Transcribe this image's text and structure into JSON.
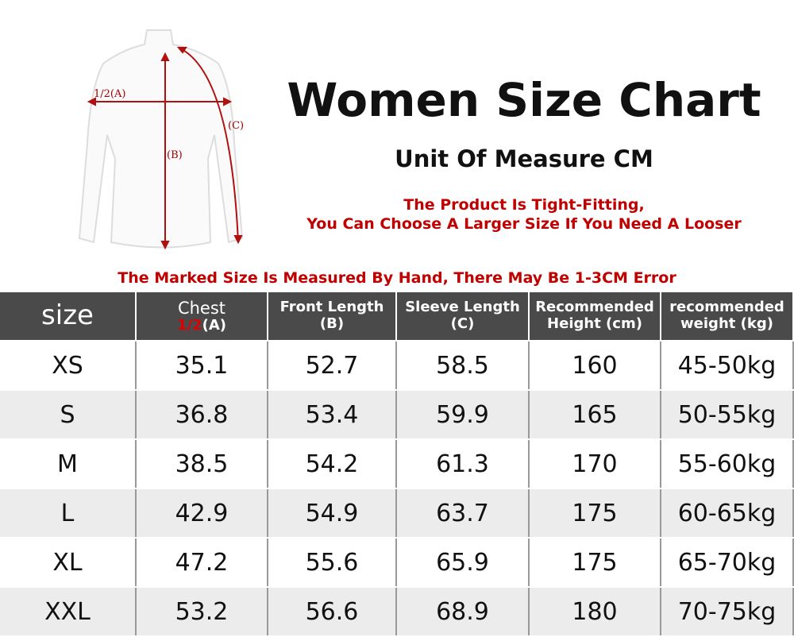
{
  "diagram": {
    "label_a": "1/2(A)",
    "label_b": "(B)",
    "label_c": "(C)"
  },
  "header": {
    "title": "Women Size Chart",
    "subtitle": "Unit Of Measure CM",
    "note_lines": [
      "The Product Is Tight-Fitting,",
      "You Can Choose A Larger Size If You Need A Looser"
    ],
    "error_note": "The Marked Size Is Measured By Hand, There May Be 1-3CM Error"
  },
  "table": {
    "columns": [
      {
        "title": "size"
      },
      {
        "title": "Chest",
        "highlight": "1/2",
        "sub": "(A)"
      },
      {
        "title": "Front Length",
        "sub": "(B)"
      },
      {
        "title": "Sleeve Length",
        "sub": "(C)"
      },
      {
        "title": "Recommended",
        "sub": "Height (cm)"
      },
      {
        "title": "recommended",
        "sub": "weight (kg)"
      }
    ],
    "rows": [
      [
        "XS",
        35.1,
        52.7,
        58.5,
        160,
        "45-50kg"
      ],
      [
        "S",
        36.8,
        53.4,
        59.9,
        165,
        "50-55kg"
      ],
      [
        "M",
        38.5,
        54.2,
        61.3,
        170,
        "55-60kg"
      ],
      [
        "L",
        42.9,
        54.9,
        63.7,
        175,
        "60-65kg"
      ],
      [
        "XL",
        47.2,
        55.6,
        65.9,
        175,
        "65-70kg"
      ],
      [
        "XXL",
        53.2,
        56.6,
        68.9,
        180,
        "70-75kg"
      ]
    ]
  }
}
